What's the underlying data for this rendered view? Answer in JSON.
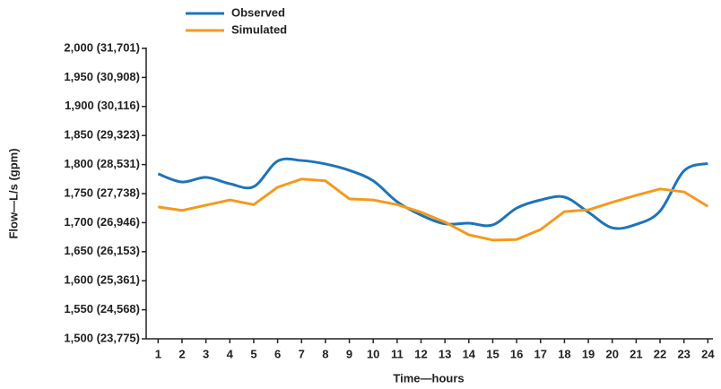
{
  "chart_data": {
    "type": "line",
    "x_label": "Time—hours",
    "y_label": "Flow—L/s (gpm)",
    "x": [
      1,
      2,
      3,
      4,
      5,
      6,
      7,
      8,
      9,
      10,
      11,
      12,
      13,
      14,
      15,
      16,
      17,
      18,
      19,
      20,
      21,
      22,
      23,
      24
    ],
    "series": [
      {
        "name": "Observed",
        "color": "#1f74b7",
        "smooth": true,
        "values": [
          1784,
          1770,
          1778,
          1767,
          1762,
          1806,
          1807,
          1801,
          1790,
          1772,
          1736,
          1713,
          1698,
          1699,
          1696,
          1725,
          1739,
          1744,
          1718,
          1691,
          1697,
          1720,
          1789,
          1802
        ]
      },
      {
        "name": "Simulated",
        "color": "#f39a1e",
        "smooth": false,
        "values": [
          1727,
          1721,
          1730,
          1739,
          1731,
          1761,
          1775,
          1772,
          1741,
          1739,
          1731,
          1718,
          1701,
          1679,
          1670,
          1671,
          1688,
          1719,
          1722,
          1735,
          1747,
          1758,
          1753,
          1728
        ]
      }
    ],
    "xlim": [
      0.5,
      24.4
    ],
    "xticks": [
      1,
      2,
      3,
      4,
      5,
      6,
      7,
      8,
      9,
      10,
      11,
      12,
      13,
      14,
      15,
      16,
      17,
      18,
      19,
      20,
      21,
      22,
      23,
      24
    ],
    "ylim": [
      1500,
      2000
    ],
    "yticks": [
      {
        "value": 1500,
        "label": "1,500 (23,775)"
      },
      {
        "value": 1550,
        "label": "1,550 (24,568)"
      },
      {
        "value": 1600,
        "label": "1,600 (25,361)"
      },
      {
        "value": 1650,
        "label": "1,650 (26,153)"
      },
      {
        "value": 1700,
        "label": "1,700 (26,946)"
      },
      {
        "value": 1750,
        "label": "1,750 (27,738)"
      },
      {
        "value": 1800,
        "label": "1,800 (28,531)"
      },
      {
        "value": 1850,
        "label": "1,850 (29,323)"
      },
      {
        "value": 1900,
        "label": "1,900 (30,116)"
      },
      {
        "value": 1950,
        "label": "1,950 (30,908)"
      },
      {
        "value": 2000,
        "label": "2,000 (31,701)"
      }
    ],
    "grid": false,
    "legend": "top-left"
  }
}
